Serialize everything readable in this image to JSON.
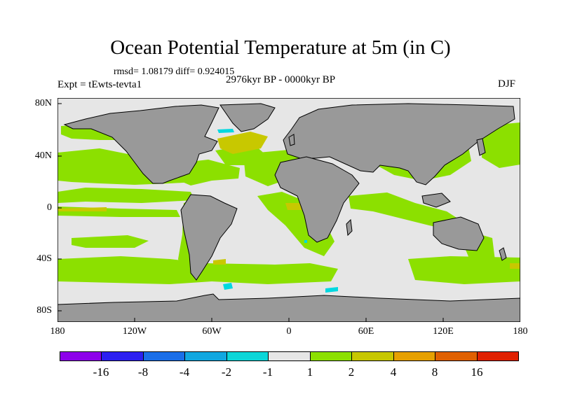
{
  "title": "Ocean Potential Temperature at 5m (in C)",
  "stats_line": "rmsd= 1.08179 diff= 0.924015",
  "experiment": "Expt = tEwts-tevta1",
  "period": "2976kyr BP - 0000kyr BP",
  "season": "DJF",
  "y_ticks": [
    "80N",
    "40N",
    "0",
    "40S",
    "80S"
  ],
  "x_ticks": [
    "180",
    "120W",
    "60W",
    "0",
    "60E",
    "120E",
    "180"
  ],
  "colors": {
    "land": "#999999",
    "neutral": "#e6e6e6",
    "green": "#8ce000",
    "yellow": "#c8c800",
    "cyan": "#00d8e0"
  },
  "legend": {
    "colors": [
      "#8d00ea",
      "#2c1ff0",
      "#1a6ee8",
      "#11a7e0",
      "#0cd6d8",
      "#e6e6e6",
      "#8ce000",
      "#c7c700",
      "#e6a000",
      "#e06000",
      "#e02000"
    ],
    "labels": [
      "-16",
      "-8",
      "-4",
      "-2",
      "-1",
      "1",
      "2",
      "4",
      "8",
      "16"
    ]
  }
}
